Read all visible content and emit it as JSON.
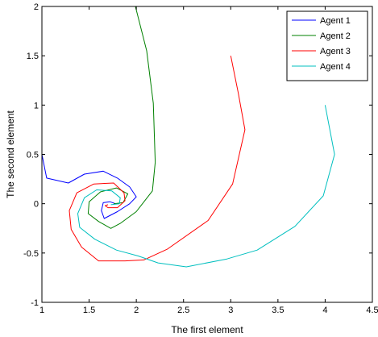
{
  "chart_data": {
    "type": "line",
    "xlabel": "The first element",
    "ylabel": "The second element",
    "xlim": [
      1,
      4.5
    ],
    "ylim": [
      -1,
      2
    ],
    "xticks": [
      1,
      1.5,
      2,
      2.5,
      3,
      3.5,
      4,
      4.5
    ],
    "yticks": [
      -1,
      -0.5,
      0,
      0.5,
      1,
      1.5,
      2
    ],
    "xtick_labels": [
      "1",
      "1.5",
      "2",
      "2.5",
      "3",
      "3.5",
      "4",
      "4.5"
    ],
    "ytick_labels": [
      "-1",
      "-0.5",
      "0",
      "0.5",
      "1",
      "1.5",
      "2"
    ],
    "grid": false,
    "legend_position": "top-right",
    "series": [
      {
        "name": "Agent 1",
        "color": "#0000ff",
        "points": [
          [
            1.0,
            0.5
          ],
          [
            1.05,
            0.26
          ],
          [
            1.28,
            0.21
          ],
          [
            1.45,
            0.3
          ],
          [
            1.65,
            0.33
          ],
          [
            1.8,
            0.26
          ],
          [
            1.93,
            0.17
          ],
          [
            2.0,
            0.07
          ],
          [
            1.93,
            0.0
          ],
          [
            1.8,
            -0.08
          ],
          [
            1.66,
            -0.15
          ],
          [
            1.63,
            -0.07
          ],
          [
            1.65,
            0.01
          ],
          [
            1.72,
            0.02
          ],
          [
            1.78,
            0.0
          ]
        ]
      },
      {
        "name": "Agent 2",
        "color": "#008000",
        "points": [
          [
            1.99,
            2.0
          ],
          [
            2.11,
            1.55
          ],
          [
            2.18,
            1.02
          ],
          [
            2.2,
            0.42
          ],
          [
            2.17,
            0.13
          ],
          [
            2.0,
            -0.08
          ],
          [
            1.83,
            -0.2
          ],
          [
            1.73,
            -0.25
          ],
          [
            1.6,
            -0.18
          ],
          [
            1.49,
            -0.1
          ],
          [
            1.5,
            0.02
          ],
          [
            1.62,
            0.12
          ],
          [
            1.79,
            0.16
          ],
          [
            1.91,
            0.1
          ],
          [
            1.86,
            0.01
          ],
          [
            1.76,
            0.0
          ]
        ]
      },
      {
        "name": "Agent 3",
        "color": "#ff0000",
        "points": [
          [
            3.0,
            1.5
          ],
          [
            3.08,
            1.12
          ],
          [
            3.15,
            0.75
          ],
          [
            3.02,
            0.2
          ],
          [
            2.76,
            -0.17
          ],
          [
            2.33,
            -0.46
          ],
          [
            2.08,
            -0.57
          ],
          [
            1.88,
            -0.58
          ],
          [
            1.6,
            -0.58
          ],
          [
            1.42,
            -0.44
          ],
          [
            1.31,
            -0.26
          ],
          [
            1.29,
            -0.07
          ],
          [
            1.37,
            0.11
          ],
          [
            1.55,
            0.2
          ],
          [
            1.76,
            0.21
          ],
          [
            1.87,
            0.11
          ],
          [
            1.88,
            0.03
          ],
          [
            1.8,
            -0.04
          ],
          [
            1.7,
            -0.04
          ],
          [
            1.67,
            -0.02
          ],
          [
            1.7,
            -0.01
          ]
        ]
      },
      {
        "name": "Agent 4",
        "color": "#00bfbf",
        "points": [
          [
            4.0,
            1.0
          ],
          [
            4.1,
            0.5
          ],
          [
            3.98,
            0.08
          ],
          [
            3.68,
            -0.23
          ],
          [
            3.28,
            -0.47
          ],
          [
            2.96,
            -0.56
          ],
          [
            2.53,
            -0.64
          ],
          [
            2.23,
            -0.6
          ],
          [
            2.02,
            -0.53
          ],
          [
            1.79,
            -0.47
          ],
          [
            1.56,
            -0.36
          ],
          [
            1.4,
            -0.24
          ],
          [
            1.38,
            -0.1
          ],
          [
            1.45,
            0.06
          ],
          [
            1.58,
            0.14
          ],
          [
            1.74,
            0.13
          ],
          [
            1.83,
            0.06
          ],
          [
            1.82,
            0.0
          ],
          [
            1.73,
            -0.01
          ]
        ]
      }
    ]
  }
}
